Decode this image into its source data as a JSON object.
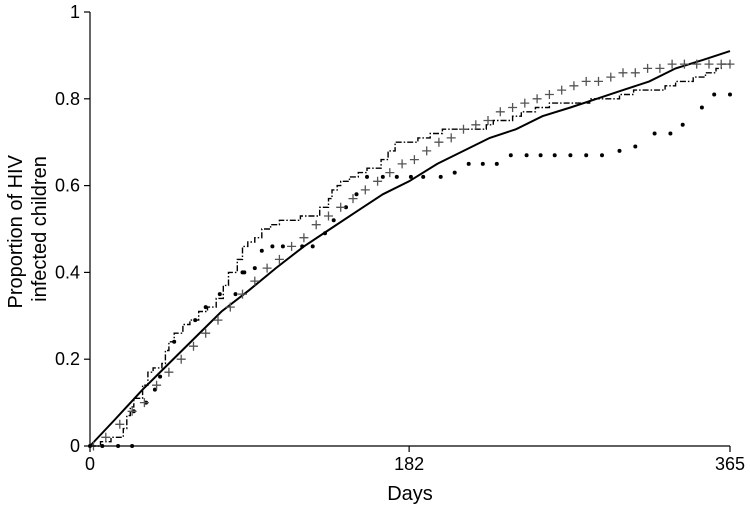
{
  "chart_data": {
    "type": "line",
    "title": "",
    "xlabel": "Days",
    "ylabel_lines": [
      "Proportion of HIV",
      "infected children"
    ],
    "xlim": [
      0,
      365
    ],
    "ylim": [
      0,
      1
    ],
    "xticks": [
      0,
      182,
      365
    ],
    "xtick_labels": [
      "0",
      "182",
      "365"
    ],
    "yticks": [
      0,
      0.2,
      0.4,
      0.6,
      0.8,
      1
    ],
    "ytick_labels": [
      "0",
      "0.2",
      "0.4",
      "0.6",
      "0.8",
      "1"
    ],
    "grid": false,
    "legend": "none",
    "colors": {
      "axis": "#000000",
      "series": "#000000",
      "plus_marker": "#555555"
    },
    "series": [
      {
        "style": "solid-curve",
        "points": [
          [
            0,
            0
          ],
          [
            14,
            0.06
          ],
          [
            30,
            0.13
          ],
          [
            45,
            0.19
          ],
          [
            60,
            0.25
          ],
          [
            75,
            0.31
          ],
          [
            91,
            0.36
          ],
          [
            106,
            0.41
          ],
          [
            122,
            0.46
          ],
          [
            137,
            0.5
          ],
          [
            152,
            0.54
          ],
          [
            167,
            0.58
          ],
          [
            182,
            0.61
          ],
          [
            198,
            0.65
          ],
          [
            213,
            0.68
          ],
          [
            228,
            0.71
          ],
          [
            243,
            0.73
          ],
          [
            258,
            0.76
          ],
          [
            274,
            0.78
          ],
          [
            289,
            0.8
          ],
          [
            304,
            0.82
          ],
          [
            319,
            0.84
          ],
          [
            334,
            0.87
          ],
          [
            350,
            0.89
          ],
          [
            365,
            0.91
          ]
        ]
      },
      {
        "style": "dash-dot-step",
        "points": [
          [
            0,
            0
          ],
          [
            6,
            0.01
          ],
          [
            12,
            0.02
          ],
          [
            19,
            0.04
          ],
          [
            21,
            0.07
          ],
          [
            23,
            0.09
          ],
          [
            25,
            0.11
          ],
          [
            30,
            0.14
          ],
          [
            33,
            0.17
          ],
          [
            36,
            0.18
          ],
          [
            41,
            0.19
          ],
          [
            43,
            0.22
          ],
          [
            45,
            0.24
          ],
          [
            48,
            0.26
          ],
          [
            53,
            0.28
          ],
          [
            57,
            0.29
          ],
          [
            62,
            0.31
          ],
          [
            67,
            0.32
          ],
          [
            72,
            0.34
          ],
          [
            76,
            0.37
          ],
          [
            79,
            0.4
          ],
          [
            84,
            0.43
          ],
          [
            87,
            0.46
          ],
          [
            90,
            0.47
          ],
          [
            94,
            0.48
          ],
          [
            98,
            0.5
          ],
          [
            103,
            0.51
          ],
          [
            108,
            0.52
          ],
          [
            120,
            0.53
          ],
          [
            131,
            0.55
          ],
          [
            136,
            0.57
          ],
          [
            138,
            0.59
          ],
          [
            141,
            0.6
          ],
          [
            143,
            0.61
          ],
          [
            148,
            0.62
          ],
          [
            153,
            0.63
          ],
          [
            158,
            0.64
          ],
          [
            166,
            0.66
          ],
          [
            170,
            0.68
          ],
          [
            174,
            0.7
          ],
          [
            187,
            0.71
          ],
          [
            194,
            0.72
          ],
          [
            201,
            0.73
          ],
          [
            210,
            0.73
          ],
          [
            226,
            0.74
          ],
          [
            230,
            0.75
          ],
          [
            241,
            0.76
          ],
          [
            246,
            0.77
          ],
          [
            254,
            0.78
          ],
          [
            262,
            0.79
          ],
          [
            285,
            0.8
          ],
          [
            302,
            0.81
          ],
          [
            310,
            0.82
          ],
          [
            328,
            0.83
          ],
          [
            334,
            0.84
          ],
          [
            344,
            0.85
          ],
          [
            351,
            0.86
          ],
          [
            357,
            0.87
          ],
          [
            360,
            0.88
          ],
          [
            365,
            0.88
          ]
        ]
      },
      {
        "style": "dots",
        "points": [
          [
            0,
            0
          ],
          [
            7,
            0
          ],
          [
            16,
            0
          ],
          [
            24,
            0
          ],
          [
            25,
            0.08
          ],
          [
            32,
            0.1
          ],
          [
            37,
            0.13
          ],
          [
            40,
            0.16
          ],
          [
            48,
            0.24
          ],
          [
            60,
            0.29
          ],
          [
            66,
            0.32
          ],
          [
            74,
            0.35
          ],
          [
            87,
            0.4
          ],
          [
            83,
            0.35
          ],
          [
            88,
            0.4
          ],
          [
            94,
            0.41
          ],
          [
            98,
            0.45
          ],
          [
            104,
            0.46
          ],
          [
            110,
            0.46
          ],
          [
            121,
            0.46
          ],
          [
            127,
            0.46
          ],
          [
            134,
            0.49
          ],
          [
            139,
            0.52
          ],
          [
            146,
            0.55
          ],
          [
            152,
            0.58
          ],
          [
            158,
            0.62
          ],
          [
            167,
            0.62
          ],
          [
            175,
            0.62
          ],
          [
            183,
            0.62
          ],
          [
            190,
            0.62
          ],
          [
            200,
            0.62
          ],
          [
            208,
            0.63
          ],
          [
            216,
            0.65
          ],
          [
            224,
            0.65
          ],
          [
            232,
            0.65
          ],
          [
            240,
            0.67
          ],
          [
            249,
            0.67
          ],
          [
            257,
            0.67
          ],
          [
            265,
            0.67
          ],
          [
            274,
            0.67
          ],
          [
            283,
            0.67
          ],
          [
            292,
            0.67
          ],
          [
            302,
            0.68
          ],
          [
            311,
            0.69
          ],
          [
            322,
            0.72
          ],
          [
            331,
            0.72
          ],
          [
            338,
            0.74
          ],
          [
            349,
            0.78
          ],
          [
            356,
            0.81
          ],
          [
            365,
            0.81
          ]
        ]
      },
      {
        "style": "plus",
        "points": [
          [
            2,
            0
          ],
          [
            9,
            0.02
          ],
          [
            17,
            0.05
          ],
          [
            24,
            0.08
          ],
          [
            31,
            0.1
          ],
          [
            38,
            0.14
          ],
          [
            45,
            0.17
          ],
          [
            52,
            0.2
          ],
          [
            59,
            0.23
          ],
          [
            66,
            0.26
          ],
          [
            73,
            0.29
          ],
          [
            80,
            0.32
          ],
          [
            87,
            0.35
          ],
          [
            94,
            0.38
          ],
          [
            101,
            0.41
          ],
          [
            108,
            0.43
          ],
          [
            115,
            0.46
          ],
          [
            122,
            0.48
          ],
          [
            129,
            0.51
          ],
          [
            136,
            0.53
          ],
          [
            143,
            0.55
          ],
          [
            150,
            0.57
          ],
          [
            157,
            0.59
          ],
          [
            164,
            0.61
          ],
          [
            171,
            0.63
          ],
          [
            178,
            0.65
          ],
          [
            185,
            0.66
          ],
          [
            192,
            0.68
          ],
          [
            199,
            0.7
          ],
          [
            206,
            0.71
          ],
          [
            213,
            0.73
          ],
          [
            220,
            0.74
          ],
          [
            227,
            0.75
          ],
          [
            234,
            0.77
          ],
          [
            241,
            0.78
          ],
          [
            248,
            0.79
          ],
          [
            255,
            0.8
          ],
          [
            262,
            0.81
          ],
          [
            269,
            0.82
          ],
          [
            276,
            0.83
          ],
          [
            283,
            0.84
          ],
          [
            290,
            0.84
          ],
          [
            297,
            0.85
          ],
          [
            304,
            0.86
          ],
          [
            311,
            0.86
          ],
          [
            318,
            0.87
          ],
          [
            325,
            0.87
          ],
          [
            332,
            0.88
          ],
          [
            339,
            0.88
          ],
          [
            346,
            0.88
          ],
          [
            353,
            0.88
          ],
          [
            360,
            0.88
          ],
          [
            365,
            0.88
          ]
        ]
      }
    ]
  }
}
